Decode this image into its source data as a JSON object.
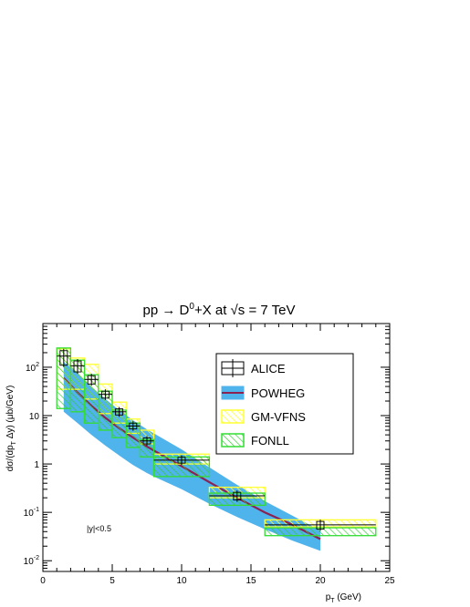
{
  "chart_data": {
    "type": "scatter",
    "title": {
      "pre": "pp → D",
      "sup": "0",
      "mid": "+X at ",
      "root": "√s",
      "post": " = 7 TeV"
    },
    "xlabel": {
      "main": "p",
      "sub": "T",
      "post": " (GeV)"
    },
    "ylabel": {
      "pre": "dσ/(dp",
      "sub": "T",
      "post": " Δy) (μb/GeV)"
    },
    "annotation": "|y|<0.5",
    "xlim": [
      0,
      25
    ],
    "ylim": [
      0.006,
      800
    ],
    "yscale": "log",
    "x_ticks": [
      "0",
      "5",
      "10",
      "15",
      "20",
      "25"
    ],
    "y_ticks": [
      {
        "value": 0.01,
        "base": "10",
        "exp": "-2"
      },
      {
        "value": 0.1,
        "base": "10",
        "exp": "-1"
      },
      {
        "value": 1,
        "base": "",
        "exp": "",
        "label": "1"
      },
      {
        "value": 10,
        "base": "",
        "exp": "",
        "label": "10"
      },
      {
        "value": 100,
        "base": "10",
        "exp": "2"
      }
    ],
    "legend_position": "top-right",
    "legend": [
      {
        "key": "alice",
        "label": "ALICE"
      },
      {
        "key": "powheg",
        "label": "POWHEG"
      },
      {
        "key": "gmvfns",
        "label": "GM-VFNS"
      },
      {
        "key": "fonll",
        "label": "FONLL"
      }
    ],
    "colors": {
      "powheg_band": "#4fb3ec",
      "powheg_line": "#8b2252",
      "gmvfns": "#ffff33",
      "fonll": "#33dd33",
      "alice": "#000000"
    },
    "series": [
      {
        "name": "ALICE",
        "points": [
          {
            "x": 1.5,
            "xlo": 1,
            "xhi": 2,
            "y": 170,
            "ylo": 110,
            "yhi": 220
          },
          {
            "x": 2.5,
            "xlo": 2,
            "xhi": 3,
            "y": 107,
            "ylo": 80,
            "yhi": 135
          },
          {
            "x": 3.5,
            "xlo": 3,
            "xhi": 4,
            "y": 56,
            "ylo": 45,
            "yhi": 67
          },
          {
            "x": 4.5,
            "xlo": 4,
            "xhi": 5,
            "y": 27.5,
            "ylo": 23,
            "yhi": 32
          },
          {
            "x": 5.5,
            "xlo": 5,
            "xhi": 6,
            "y": 12,
            "ylo": 10.3,
            "yhi": 13.8
          },
          {
            "x": 6.5,
            "xlo": 6,
            "xhi": 7,
            "y": 6.1,
            "ylo": 5.3,
            "yhi": 7
          },
          {
            "x": 7.5,
            "xlo": 7,
            "xhi": 8,
            "y": 3,
            "ylo": 2.6,
            "yhi": 3.45
          },
          {
            "x": 10,
            "xlo": 8,
            "xhi": 12,
            "y": 1.2,
            "ylo": 1.04,
            "yhi": 1.38
          },
          {
            "x": 14,
            "xlo": 12,
            "xhi": 16,
            "y": 0.22,
            "ylo": 0.18,
            "yhi": 0.26
          },
          {
            "x": 20,
            "xlo": 16,
            "xhi": 24,
            "y": 0.055,
            "ylo": 0.045,
            "yhi": 0.065
          }
        ]
      },
      {
        "name": "POWHEG",
        "central": [
          [
            1.5,
            60
          ],
          [
            2.5,
            30
          ],
          [
            3.5,
            16
          ],
          [
            4.5,
            9
          ],
          [
            5.5,
            5.5
          ],
          [
            6.5,
            3.5
          ],
          [
            7.5,
            2.3
          ],
          [
            8,
            1.9
          ],
          [
            10,
            0.9
          ],
          [
            12,
            0.42
          ],
          [
            14,
            0.2
          ],
          [
            16,
            0.1
          ],
          [
            18,
            0.055
          ],
          [
            20,
            0.028
          ]
        ],
        "low": [
          [
            1.5,
            12
          ],
          [
            2.5,
            7
          ],
          [
            3.5,
            4
          ],
          [
            4.5,
            2.4
          ],
          [
            5.5,
            1.5
          ],
          [
            6.5,
            0.95
          ],
          [
            7.5,
            0.65
          ],
          [
            8,
            0.55
          ],
          [
            10,
            0.3
          ],
          [
            12,
            0.15
          ],
          [
            14,
            0.08
          ],
          [
            16,
            0.045
          ],
          [
            18,
            0.026
          ],
          [
            20,
            0.016
          ]
        ],
        "high": [
          [
            1.5,
            130
          ],
          [
            2.5,
            75
          ],
          [
            3.5,
            40
          ],
          [
            4.5,
            22
          ],
          [
            5.5,
            13
          ],
          [
            6.5,
            8
          ],
          [
            7.5,
            5.2
          ],
          [
            8,
            4.3
          ],
          [
            10,
            2
          ],
          [
            12,
            0.85
          ],
          [
            14,
            0.37
          ],
          [
            16,
            0.17
          ],
          [
            18,
            0.085
          ],
          [
            20,
            0.042
          ]
        ]
      },
      {
        "name": "GM-VFNS",
        "bins": [
          {
            "xlo": 1,
            "xhi": 2,
            "ylo": 35,
            "yhi": 240
          },
          {
            "xlo": 2,
            "xhi": 3,
            "ylo": 35,
            "yhi": 155
          },
          {
            "xlo": 3,
            "xhi": 4,
            "ylo": 22,
            "yhi": 115
          },
          {
            "xlo": 4,
            "xhi": 5,
            "ylo": 11,
            "yhi": 45
          },
          {
            "xlo": 5,
            "xhi": 6,
            "ylo": 7,
            "yhi": 19
          },
          {
            "xlo": 6,
            "xhi": 7,
            "ylo": 4.3,
            "yhi": 8.5
          },
          {
            "xlo": 7,
            "xhi": 8,
            "ylo": 2.6,
            "yhi": 5
          },
          {
            "xlo": 8,
            "xhi": 12,
            "ylo": 1,
            "yhi": 1.6
          },
          {
            "xlo": 12,
            "xhi": 16,
            "ylo": 0.2,
            "yhi": 0.33
          },
          {
            "xlo": 16,
            "xhi": 24,
            "ylo": 0.05,
            "yhi": 0.07
          }
        ]
      },
      {
        "name": "FONLL",
        "bins": [
          {
            "xlo": 1,
            "xhi": 2,
            "ylo": 14,
            "yhi": 250
          },
          {
            "xlo": 2,
            "xhi": 3,
            "ylo": 12,
            "yhi": 140
          },
          {
            "xlo": 3,
            "xhi": 4,
            "ylo": 7,
            "yhi": 70
          },
          {
            "xlo": 4,
            "xhi": 5,
            "ylo": 5,
            "yhi": 32
          },
          {
            "xlo": 5,
            "xhi": 6,
            "ylo": 3.5,
            "yhi": 13
          },
          {
            "xlo": 6,
            "xhi": 7,
            "ylo": 2.2,
            "yhi": 7
          },
          {
            "xlo": 7,
            "xhi": 8,
            "ylo": 1.4,
            "yhi": 3.2
          },
          {
            "xlo": 8,
            "xhi": 12,
            "ylo": 0.55,
            "yhi": 1.4
          },
          {
            "xlo": 12,
            "xhi": 16,
            "ylo": 0.14,
            "yhi": 0.25
          },
          {
            "xlo": 16,
            "xhi": 24,
            "ylo": 0.033,
            "yhi": 0.048
          }
        ]
      }
    ]
  }
}
